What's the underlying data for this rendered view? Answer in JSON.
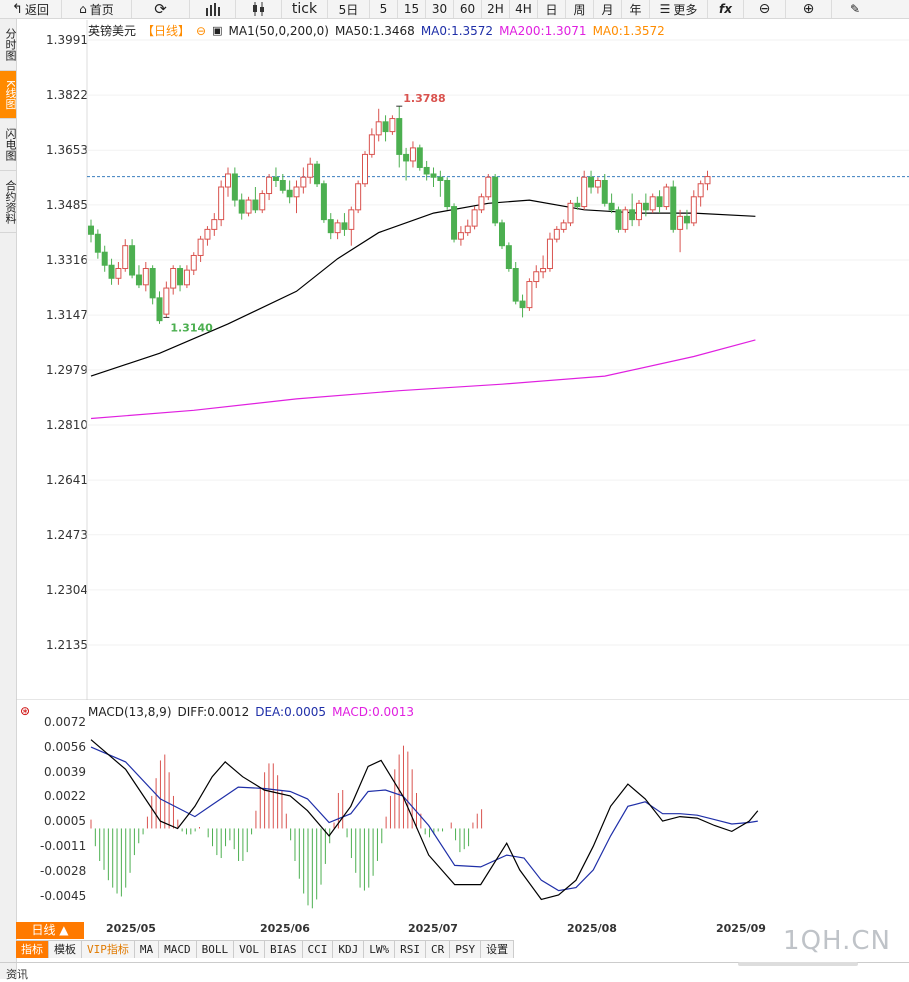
{
  "toolbar": {
    "back": "返回",
    "home": "首页",
    "tick": "tick",
    "p5d": "5日",
    "m5": "5",
    "m15": "15",
    "m30": "30",
    "m60": "60",
    "h2": "2H",
    "h4": "4H",
    "day": "日",
    "week": "周",
    "month": "月",
    "year": "年",
    "more": "更多"
  },
  "left_tabs": [
    "分时图",
    "K线图",
    "闪电图",
    "合约资料"
  ],
  "legend": {
    "symbol": "英镑美元",
    "period": "【日线】",
    "ma1": "MA1(50,0,200,0)",
    "ma50": "MA50:1.3468",
    "ma0a": "MA0:1.3572",
    "ma200": "MA200:1.3071",
    "ma0b": "MA0:1.3572"
  },
  "macd_legend": {
    "name": "MACD(13,8,9)",
    "diff": "DIFF:0.0012",
    "dea": "DEA:0.0005",
    "macd": "MACD:0.0013"
  },
  "colors": {
    "up": "#d9534f",
    "down": "#4caf50",
    "ma50": "#000000",
    "ma200": "#e020e0",
    "ma0": "#ff8c00",
    "dea": "#1f2fa8",
    "accent": "#ff7a00"
  },
  "price_axis": [
    "1.3991",
    "1.3822",
    "1.3653",
    "1.3485",
    "1.3316",
    "1.3147",
    "1.2979",
    "1.2810",
    "1.2641",
    "1.2473",
    "1.2304",
    "1.2135"
  ],
  "macd_axis": [
    "0.0072",
    "0.0056",
    "0.0039",
    "0.0022",
    "0.0005",
    "-0.0011",
    "-0.0028",
    "-0.0045"
  ],
  "date_labels": [
    "2025/05",
    "2025/06",
    "2025/07",
    "2025/08",
    "2025/09"
  ],
  "bottom_tabs": [
    "指标",
    "模板",
    "VIP指标",
    "MA",
    "MACD",
    "BOLL",
    "VOL",
    "BIAS",
    "CCI",
    "KDJ",
    "LW%",
    "RSI",
    "CR",
    "PSY",
    "设置"
  ],
  "period_button": "日线 ▲",
  "watermark": "1QH.CN",
  "footer_tab": "资讯",
  "chart_data": [
    {
      "type": "candlestick",
      "title": "英镑美元",
      "ylim": [
        1.205,
        1.405
      ],
      "current_price": 1.3572,
      "annotations": [
        {
          "label": "1.3788",
          "value": 1.3788
        },
        {
          "label": "1.3140",
          "value": 1.314
        }
      ],
      "candles": [
        [
          1.342,
          1.344,
          1.337,
          1.3395
        ],
        [
          1.3395,
          1.341,
          1.332,
          1.334
        ],
        [
          1.334,
          1.336,
          1.328,
          1.33
        ],
        [
          1.33,
          1.332,
          1.324,
          1.326
        ],
        [
          1.326,
          1.331,
          1.324,
          1.329
        ],
        [
          1.329,
          1.338,
          1.328,
          1.336
        ],
        [
          1.336,
          1.338,
          1.326,
          1.327
        ],
        [
          1.327,
          1.33,
          1.323,
          1.324
        ],
        [
          1.324,
          1.331,
          1.322,
          1.329
        ],
        [
          1.329,
          1.33,
          1.318,
          1.32
        ],
        [
          1.32,
          1.322,
          1.312,
          1.313
        ],
        [
          1.315,
          1.325,
          1.314,
          1.323
        ],
        [
          1.323,
          1.33,
          1.321,
          1.329
        ],
        [
          1.329,
          1.33,
          1.322,
          1.324
        ],
        [
          1.324,
          1.33,
          1.323,
          1.3285
        ],
        [
          1.3285,
          1.334,
          1.327,
          1.333
        ],
        [
          1.333,
          1.339,
          1.331,
          1.338
        ],
        [
          1.338,
          1.342,
          1.336,
          1.341
        ],
        [
          1.341,
          1.346,
          1.339,
          1.344
        ],
        [
          1.344,
          1.356,
          1.342,
          1.354
        ],
        [
          1.354,
          1.36,
          1.351,
          1.358
        ],
        [
          1.358,
          1.36,
          1.348,
          1.35
        ],
        [
          1.35,
          1.352,
          1.344,
          1.346
        ],
        [
          1.346,
          1.351,
          1.345,
          1.35
        ],
        [
          1.35,
          1.354,
          1.346,
          1.347
        ],
        [
          1.347,
          1.353,
          1.346,
          1.352
        ],
        [
          1.352,
          1.358,
          1.35,
          1.357
        ],
        [
          1.357,
          1.36,
          1.354,
          1.356
        ],
        [
          1.356,
          1.358,
          1.352,
          1.353
        ],
        [
          1.353,
          1.356,
          1.349,
          1.351
        ],
        [
          1.351,
          1.356,
          1.346,
          1.354
        ],
        [
          1.354,
          1.36,
          1.352,
          1.357
        ],
        [
          1.357,
          1.363,
          1.355,
          1.361
        ],
        [
          1.361,
          1.362,
          1.354,
          1.355
        ],
        [
          1.355,
          1.356,
          1.343,
          1.344
        ],
        [
          1.344,
          1.346,
          1.338,
          1.34
        ],
        [
          1.34,
          1.344,
          1.338,
          1.343
        ],
        [
          1.343,
          1.346,
          1.339,
          1.341
        ],
        [
          1.341,
          1.348,
          1.336,
          1.347
        ],
        [
          1.347,
          1.356,
          1.346,
          1.355
        ],
        [
          1.355,
          1.365,
          1.354,
          1.364
        ],
        [
          1.364,
          1.372,
          1.363,
          1.37
        ],
        [
          1.37,
          1.378,
          1.368,
          1.374
        ],
        [
          1.374,
          1.376,
          1.368,
          1.371
        ],
        [
          1.371,
          1.376,
          1.37,
          1.375
        ],
        [
          1.375,
          1.3788,
          1.36,
          1.364
        ],
        [
          1.364,
          1.366,
          1.356,
          1.362
        ],
        [
          1.362,
          1.368,
          1.36,
          1.366
        ],
        [
          1.366,
          1.367,
          1.359,
          1.36
        ],
        [
          1.36,
          1.362,
          1.356,
          1.358
        ],
        [
          1.358,
          1.36,
          1.354,
          1.357
        ],
        [
          1.357,
          1.359,
          1.351,
          1.356
        ],
        [
          1.356,
          1.357,
          1.347,
          1.348
        ],
        [
          1.348,
          1.349,
          1.337,
          1.338
        ],
        [
          1.338,
          1.342,
          1.336,
          1.34
        ],
        [
          1.34,
          1.344,
          1.339,
          1.342
        ],
        [
          1.342,
          1.348,
          1.341,
          1.347
        ],
        [
          1.347,
          1.352,
          1.346,
          1.351
        ],
        [
          1.351,
          1.358,
          1.35,
          1.357
        ],
        [
          1.357,
          1.358,
          1.342,
          1.343
        ],
        [
          1.343,
          1.344,
          1.335,
          1.336
        ],
        [
          1.336,
          1.337,
          1.328,
          1.329
        ],
        [
          1.329,
          1.331,
          1.318,
          1.319
        ],
        [
          1.319,
          1.321,
          1.314,
          1.317
        ],
        [
          1.317,
          1.326,
          1.316,
          1.325
        ],
        [
          1.325,
          1.33,
          1.323,
          1.328
        ],
        [
          1.328,
          1.333,
          1.326,
          1.329
        ],
        [
          1.329,
          1.34,
          1.328,
          1.338
        ],
        [
          1.338,
          1.342,
          1.337,
          1.341
        ],
        [
          1.341,
          1.344,
          1.34,
          1.343
        ],
        [
          1.343,
          1.35,
          1.342,
          1.349
        ],
        [
          1.349,
          1.351,
          1.347,
          1.348
        ],
        [
          1.348,
          1.359,
          1.347,
          1.357
        ],
        [
          1.357,
          1.359,
          1.352,
          1.354
        ],
        [
          1.354,
          1.357,
          1.352,
          1.356
        ],
        [
          1.356,
          1.358,
          1.348,
          1.349
        ],
        [
          1.349,
          1.352,
          1.346,
          1.347
        ],
        [
          1.347,
          1.348,
          1.34,
          1.341
        ],
        [
          1.341,
          1.348,
          1.34,
          1.347
        ],
        [
          1.347,
          1.352,
          1.342,
          1.344
        ],
        [
          1.344,
          1.35,
          1.342,
          1.349
        ],
        [
          1.349,
          1.352,
          1.345,
          1.347
        ],
        [
          1.347,
          1.352,
          1.346,
          1.351
        ],
        [
          1.351,
          1.353,
          1.346,
          1.348
        ],
        [
          1.348,
          1.355,
          1.347,
          1.354
        ],
        [
          1.354,
          1.356,
          1.34,
          1.341
        ],
        [
          1.341,
          1.347,
          1.334,
          1.345
        ],
        [
          1.345,
          1.347,
          1.341,
          1.343
        ],
        [
          1.343,
          1.353,
          1.342,
          1.351
        ],
        [
          1.351,
          1.356,
          1.348,
          1.355
        ],
        [
          1.355,
          1.359,
          1.353,
          1.3572
        ]
      ],
      "ma50": [
        [
          0,
          1.296
        ],
        [
          10,
          1.303
        ],
        [
          20,
          1.312
        ],
        [
          30,
          1.322
        ],
        [
          36,
          1.332
        ],
        [
          42,
          1.34
        ],
        [
          50,
          1.346
        ],
        [
          58,
          1.349
        ],
        [
          64,
          1.35
        ],
        [
          72,
          1.347
        ],
        [
          80,
          1.346
        ],
        [
          88,
          1.346
        ],
        [
          97,
          1.345
        ]
      ],
      "ma200": [
        [
          0,
          1.283
        ],
        [
          15,
          1.2855
        ],
        [
          30,
          1.289
        ],
        [
          45,
          1.2915
        ],
        [
          60,
          1.2935
        ],
        [
          75,
          1.296
        ],
        [
          88,
          1.302
        ],
        [
          97,
          1.3071
        ]
      ]
    },
    {
      "type": "macd",
      "title": "MACD(13,8,9)",
      "ylim": [
        -0.0058,
        0.008
      ],
      "hist": [
        0.0006,
        -0.0012,
        -0.0022,
        -0.0028,
        -0.0035,
        -0.004,
        -0.0044,
        -0.0046,
        -0.004,
        -0.003,
        -0.0018,
        -0.001,
        -0.0004,
        0.0008,
        0.0022,
        0.0034,
        0.0046,
        0.005,
        0.0038,
        0.0022,
        0.0006,
        -0.0002,
        -0.0004,
        -0.0004,
        -0.0002,
        0.0001,
        0.0,
        -0.0006,
        -0.0012,
        -0.0018,
        -0.002,
        -0.0012,
        -0.0008,
        -0.0014,
        -0.0022,
        -0.0022,
        -0.0016,
        -0.0004,
        0.0012,
        0.0028,
        0.0038,
        0.0044,
        0.0044,
        0.0036,
        0.0026,
        0.001,
        -0.0008,
        -0.0022,
        -0.0034,
        -0.0044,
        -0.0052,
        -0.0054,
        -0.0048,
        -0.0038,
        -0.0024,
        -0.001,
        0.0004,
        0.0024,
        0.0026,
        -0.0006,
        -0.002,
        -0.003,
        -0.004,
        -0.0042,
        -0.004,
        -0.0032,
        -0.0022,
        -0.001,
        0.0008,
        0.0022,
        0.004,
        0.005,
        0.0056,
        0.0052,
        0.004,
        0.0024,
        0.001,
        -0.0004,
        -0.0006,
        -0.0004,
        -0.0002,
        -0.0002,
        0.0,
        0.0004,
        -0.0008,
        -0.0016,
        -0.0014,
        -0.0012,
        0.0004,
        0.001,
        0.0013
      ],
      "diff": [
        [
          0,
          0.006
        ],
        [
          8,
          0.004
        ],
        [
          16,
          0.0005
        ],
        [
          20,
          0.0
        ],
        [
          24,
          0.0015
        ],
        [
          28,
          0.0035
        ],
        [
          31,
          0.0045
        ],
        [
          35,
          0.0035
        ],
        [
          40,
          0.0026
        ],
        [
          46,
          0.0022
        ],
        [
          50,
          0.0012
        ],
        [
          55,
          -0.0005
        ],
        [
          60,
          0.0015
        ],
        [
          64,
          0.0042
        ],
        [
          67,
          0.0046
        ],
        [
          72,
          0.0022
        ],
        [
          78,
          -0.0018
        ],
        [
          84,
          -0.0038
        ],
        [
          90,
          -0.0038
        ],
        [
          96,
          -0.001
        ],
        [
          99,
          -0.0028
        ],
        [
          104,
          -0.0048
        ],
        [
          108,
          -0.0045
        ],
        [
          112,
          -0.0035
        ],
        [
          116,
          -0.0012
        ],
        [
          120,
          0.0015
        ],
        [
          124,
          0.003
        ],
        [
          128,
          0.002
        ],
        [
          132,
          0.0005
        ],
        [
          136,
          0.0008
        ],
        [
          140,
          0.0007
        ],
        [
          144,
          0.0002
        ],
        [
          148,
          -0.0002
        ],
        [
          152,
          0.0005
        ],
        [
          154,
          0.0012
        ]
      ],
      "dea": [
        [
          0,
          0.0055
        ],
        [
          8,
          0.0045
        ],
        [
          16,
          0.002
        ],
        [
          24,
          0.0008
        ],
        [
          28,
          0.0016
        ],
        [
          34,
          0.0028
        ],
        [
          40,
          0.0027
        ],
        [
          46,
          0.0025
        ],
        [
          50,
          0.002
        ],
        [
          55,
          0.0004
        ],
        [
          60,
          0.001
        ],
        [
          64,
          0.0025
        ],
        [
          68,
          0.0026
        ],
        [
          72,
          0.0022
        ],
        [
          78,
          0.0002
        ],
        [
          84,
          -0.0025
        ],
        [
          90,
          -0.0026
        ],
        [
          96,
          -0.0018
        ],
        [
          100,
          -0.002
        ],
        [
          104,
          -0.0035
        ],
        [
          108,
          -0.0042
        ],
        [
          112,
          -0.004
        ],
        [
          116,
          -0.0028
        ],
        [
          120,
          -0.0005
        ],
        [
          124,
          0.0015
        ],
        [
          128,
          0.0018
        ],
        [
          132,
          0.001
        ],
        [
          136,
          0.001
        ],
        [
          140,
          0.0009
        ],
        [
          144,
          0.0006
        ],
        [
          148,
          0.0003
        ],
        [
          152,
          0.0004
        ],
        [
          154,
          0.0005
        ]
      ]
    }
  ]
}
